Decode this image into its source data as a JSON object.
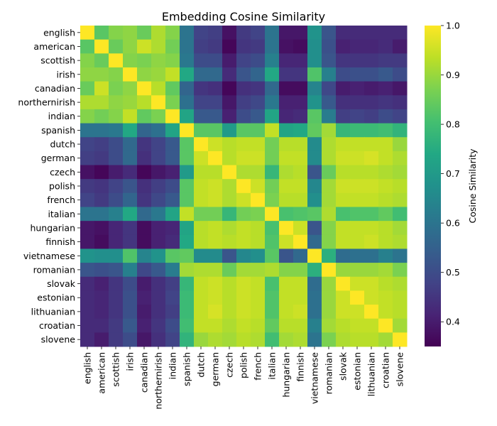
{
  "chart_data": {
    "type": "heatmap",
    "title": "Embedding Cosine Similarity",
    "xlabel": "",
    "ylabel": "",
    "labels": [
      "english",
      "american",
      "scottish",
      "irish",
      "canadian",
      "northernirish",
      "indian",
      "spanish",
      "dutch",
      "german",
      "czech",
      "polish",
      "french",
      "italian",
      "hungarian",
      "finnish",
      "vietnamese",
      "romanian",
      "slovak",
      "estonian",
      "lithuanian",
      "croatian",
      "slovene"
    ],
    "colormap": "viridis",
    "colorbar": {
      "label": "Cosine Similarity",
      "vmin": 0.35,
      "vmax": 1.0,
      "ticks": [
        0.4,
        0.5,
        0.6,
        0.7,
        0.8,
        0.9,
        1.0
      ],
      "tick_labels": [
        "0.4",
        "0.5",
        "0.6",
        "0.7",
        "0.8",
        "0.9",
        "1.0"
      ],
      "placement": "right"
    },
    "grid": false,
    "values": [
      [
        1.0,
        0.83,
        0.88,
        0.89,
        0.85,
        0.92,
        0.88,
        0.6,
        0.48,
        0.47,
        0.38,
        0.46,
        0.48,
        0.6,
        0.39,
        0.39,
        0.68,
        0.52,
        0.43,
        0.43,
        0.43,
        0.43,
        0.43
      ],
      [
        0.83,
        1.0,
        0.85,
        0.89,
        0.95,
        0.92,
        0.86,
        0.6,
        0.47,
        0.46,
        0.36,
        0.45,
        0.46,
        0.6,
        0.38,
        0.37,
        0.67,
        0.51,
        0.41,
        0.42,
        0.42,
        0.43,
        0.4
      ],
      [
        0.88,
        0.85,
        1.0,
        0.88,
        0.87,
        0.89,
        0.88,
        0.61,
        0.5,
        0.5,
        0.4,
        0.48,
        0.5,
        0.63,
        0.42,
        0.42,
        0.67,
        0.52,
        0.45,
        0.45,
        0.45,
        0.46,
        0.46
      ],
      [
        0.89,
        0.89,
        0.88,
        1.0,
        0.89,
        0.9,
        0.94,
        0.74,
        0.57,
        0.57,
        0.43,
        0.52,
        0.56,
        0.74,
        0.45,
        0.45,
        0.82,
        0.63,
        0.5,
        0.51,
        0.51,
        0.53,
        0.5
      ],
      [
        0.85,
        0.95,
        0.87,
        0.89,
        1.0,
        0.93,
        0.84,
        0.56,
        0.45,
        0.44,
        0.36,
        0.44,
        0.45,
        0.57,
        0.37,
        0.37,
        0.64,
        0.49,
        0.4,
        0.41,
        0.4,
        0.41,
        0.39
      ],
      [
        0.92,
        0.92,
        0.89,
        0.9,
        0.93,
        1.0,
        0.87,
        0.59,
        0.48,
        0.48,
        0.39,
        0.47,
        0.49,
        0.61,
        0.41,
        0.41,
        0.68,
        0.53,
        0.44,
        0.44,
        0.44,
        0.45,
        0.44
      ],
      [
        0.88,
        0.86,
        0.88,
        0.94,
        0.84,
        0.87,
        1.0,
        0.73,
        0.53,
        0.53,
        0.41,
        0.5,
        0.53,
        0.73,
        0.42,
        0.43,
        0.83,
        0.62,
        0.47,
        0.48,
        0.47,
        0.5,
        0.48
      ],
      [
        0.6,
        0.6,
        0.61,
        0.74,
        0.56,
        0.59,
        0.73,
        1.0,
        0.83,
        0.83,
        0.7,
        0.83,
        0.83,
        0.94,
        0.73,
        0.74,
        0.84,
        0.91,
        0.78,
        0.79,
        0.79,
        0.8,
        0.77
      ],
      [
        0.48,
        0.47,
        0.5,
        0.57,
        0.45,
        0.48,
        0.53,
        0.83,
        1.0,
        0.95,
        0.93,
        0.94,
        0.94,
        0.86,
        0.93,
        0.93,
        0.66,
        0.92,
        0.94,
        0.94,
        0.94,
        0.94,
        0.9
      ],
      [
        0.47,
        0.46,
        0.5,
        0.57,
        0.44,
        0.48,
        0.53,
        0.83,
        0.95,
        1.0,
        0.93,
        0.95,
        0.95,
        0.86,
        0.94,
        0.94,
        0.66,
        0.92,
        0.95,
        0.95,
        0.96,
        0.94,
        0.92
      ],
      [
        0.38,
        0.36,
        0.4,
        0.43,
        0.36,
        0.39,
        0.41,
        0.7,
        0.93,
        0.93,
        1.0,
        0.92,
        0.92,
        0.78,
        0.92,
        0.93,
        0.52,
        0.85,
        0.93,
        0.93,
        0.93,
        0.92,
        0.91
      ],
      [
        0.46,
        0.45,
        0.48,
        0.52,
        0.44,
        0.47,
        0.5,
        0.83,
        0.94,
        0.95,
        0.92,
        1.0,
        0.95,
        0.86,
        0.94,
        0.94,
        0.65,
        0.91,
        0.95,
        0.95,
        0.95,
        0.94,
        0.93
      ],
      [
        0.48,
        0.46,
        0.5,
        0.56,
        0.45,
        0.49,
        0.53,
        0.83,
        0.94,
        0.95,
        0.92,
        0.95,
        1.0,
        0.87,
        0.93,
        0.93,
        0.67,
        0.91,
        0.94,
        0.94,
        0.94,
        0.93,
        0.92
      ],
      [
        0.6,
        0.6,
        0.63,
        0.74,
        0.57,
        0.61,
        0.73,
        0.94,
        0.86,
        0.86,
        0.78,
        0.86,
        0.87,
        1.0,
        0.81,
        0.82,
        0.83,
        0.92,
        0.81,
        0.82,
        0.82,
        0.84,
        0.8
      ],
      [
        0.39,
        0.38,
        0.42,
        0.45,
        0.37,
        0.41,
        0.42,
        0.73,
        0.93,
        0.94,
        0.92,
        0.94,
        0.93,
        0.81,
        1.0,
        0.95,
        0.52,
        0.88,
        0.94,
        0.94,
        0.94,
        0.93,
        0.91
      ],
      [
        0.39,
        0.37,
        0.42,
        0.45,
        0.37,
        0.41,
        0.43,
        0.74,
        0.93,
        0.94,
        0.93,
        0.94,
        0.93,
        0.82,
        0.95,
        1.0,
        0.57,
        0.88,
        0.94,
        0.94,
        0.95,
        0.93,
        0.92
      ],
      [
        0.68,
        0.67,
        0.67,
        0.82,
        0.64,
        0.68,
        0.83,
        0.84,
        0.66,
        0.66,
        0.52,
        0.65,
        0.67,
        0.83,
        0.52,
        0.57,
        1.0,
        0.76,
        0.58,
        0.59,
        0.59,
        0.63,
        0.6
      ],
      [
        0.52,
        0.51,
        0.52,
        0.63,
        0.49,
        0.53,
        0.62,
        0.91,
        0.92,
        0.92,
        0.85,
        0.91,
        0.91,
        0.92,
        0.88,
        0.88,
        0.76,
        1.0,
        0.9,
        0.9,
        0.9,
        0.91,
        0.87
      ],
      [
        0.43,
        0.41,
        0.45,
        0.5,
        0.4,
        0.44,
        0.47,
        0.78,
        0.94,
        0.95,
        0.93,
        0.95,
        0.94,
        0.81,
        0.94,
        0.94,
        0.58,
        0.9,
        1.0,
        0.95,
        0.95,
        0.93,
        0.92
      ],
      [
        0.43,
        0.42,
        0.45,
        0.51,
        0.41,
        0.44,
        0.48,
        0.79,
        0.94,
        0.95,
        0.93,
        0.95,
        0.94,
        0.82,
        0.94,
        0.94,
        0.59,
        0.9,
        0.95,
        1.0,
        0.95,
        0.94,
        0.93
      ],
      [
        0.43,
        0.42,
        0.45,
        0.51,
        0.4,
        0.44,
        0.47,
        0.79,
        0.94,
        0.96,
        0.93,
        0.95,
        0.94,
        0.82,
        0.94,
        0.95,
        0.59,
        0.9,
        0.95,
        0.95,
        1.0,
        0.94,
        0.93
      ],
      [
        0.43,
        0.43,
        0.46,
        0.53,
        0.41,
        0.45,
        0.5,
        0.8,
        0.94,
        0.94,
        0.92,
        0.94,
        0.93,
        0.84,
        0.93,
        0.93,
        0.63,
        0.91,
        0.93,
        0.94,
        0.94,
        1.0,
        0.91
      ],
      [
        0.43,
        0.4,
        0.46,
        0.5,
        0.39,
        0.44,
        0.48,
        0.77,
        0.9,
        0.92,
        0.91,
        0.93,
        0.92,
        0.8,
        0.91,
        0.92,
        0.6,
        0.87,
        0.92,
        0.93,
        0.93,
        0.91,
        1.0
      ]
    ]
  }
}
